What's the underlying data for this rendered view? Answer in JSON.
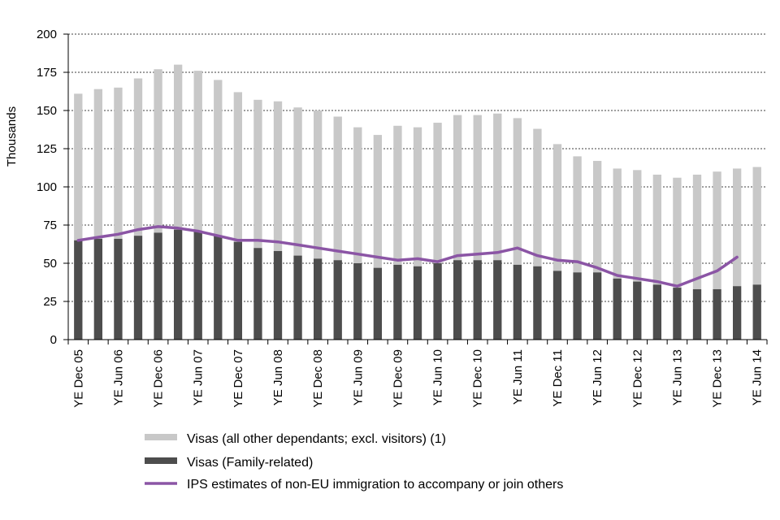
{
  "chart_data": {
    "type": "bar",
    "stacked": true,
    "ylabel": "Thousands",
    "ylim": [
      0,
      200
    ],
    "yticks": [
      0,
      25,
      50,
      75,
      100,
      125,
      150,
      175,
      200
    ],
    "grid": true,
    "legend_position": "bottom",
    "x_tick_labels": [
      "YE Dec 05",
      "YE Jun 06",
      "YE Dec 06",
      "YE Jun 07",
      "YE Dec 07",
      "YE Jun 08",
      "YE Dec 08",
      "YE Jun 09",
      "YE Dec 09",
      "YE Jun 10",
      "YE Dec 10",
      "YE Jun 11",
      "YE Dec 11",
      "YE Jun 12",
      "YE Dec 12",
      "YE Jun 13",
      "YE Dec 13",
      "YE Jun 14"
    ],
    "categories": [
      "YE Dec 05",
      "YE Mar 06",
      "YE Jun 06",
      "YE Sep 06",
      "YE Dec 06",
      "YE Mar 07",
      "YE Jun 07",
      "YE Sep 07",
      "YE Dec 07",
      "YE Mar 08",
      "YE Jun 08",
      "YE Sep 08",
      "YE Dec 08",
      "YE Mar 09",
      "YE Jun 09",
      "YE Sep 09",
      "YE Dec 09",
      "YE Mar 10",
      "YE Jun 10",
      "YE Sep 10",
      "YE Dec 10",
      "YE Mar 11",
      "YE Jun 11",
      "YE Sep 11",
      "YE Dec 11",
      "YE Mar 12",
      "YE Jun 12",
      "YE Sep 12",
      "YE Dec 12",
      "YE Mar 13",
      "YE Jun 13",
      "YE Sep 13",
      "YE Dec 13",
      "YE Mar 14",
      "YE Jun 14"
    ],
    "series": [
      {
        "name": "Visas (all other dependants; excl. visitors) (1)",
        "kind": "bar",
        "color": "#c8c8c8",
        "totals": [
          161,
          164,
          165,
          171,
          177,
          180,
          176,
          170,
          162,
          157,
          156,
          152,
          150,
          146,
          139,
          134,
          140,
          139,
          142,
          147,
          147,
          148,
          145,
          138,
          128,
          120,
          117,
          112,
          111,
          108,
          106,
          108,
          110,
          112,
          113
        ]
      },
      {
        "name": "Visas (Family-related)",
        "kind": "bar",
        "color": "#4d4d4d",
        "values": [
          65,
          66,
          66,
          68,
          70,
          72,
          71,
          68,
          64,
          60,
          58,
          55,
          53,
          52,
          50,
          47,
          49,
          48,
          50,
          52,
          52,
          52,
          49,
          48,
          45,
          44,
          44,
          40,
          38,
          36,
          34,
          33,
          33,
          35,
          36
        ]
      },
      {
        "name": "IPS estimates of non-EU immigration to accompany or join others",
        "kind": "line",
        "color": "#8b55a5",
        "values": [
          65,
          67,
          69,
          72,
          74,
          73,
          71,
          68,
          65,
          65,
          64,
          62,
          60,
          58,
          56,
          54,
          52,
          53,
          51,
          55,
          56,
          57,
          60,
          55,
          52,
          51,
          47,
          42,
          40,
          38,
          35,
          40,
          45,
          54,
          null
        ]
      }
    ]
  }
}
